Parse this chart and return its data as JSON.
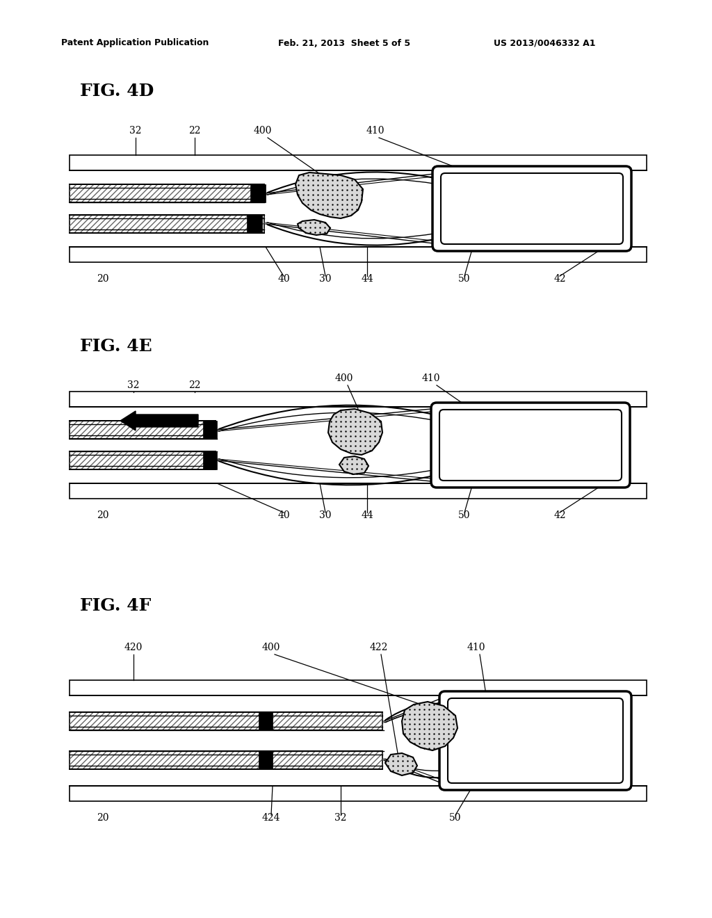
{
  "header_left": "Patent Application Publication",
  "header_mid": "Feb. 21, 2013  Sheet 5 of 5",
  "header_right": "US 2013/0046332 A1",
  "fig4d_label": "FIG. 4D",
  "fig4e_label": "FIG. 4E",
  "fig4f_label": "FIG. 4F",
  "bg": "#ffffff",
  "black": "#000000",
  "gray_light": "#e0e0e0",
  "gray_med": "#b0b0b0"
}
